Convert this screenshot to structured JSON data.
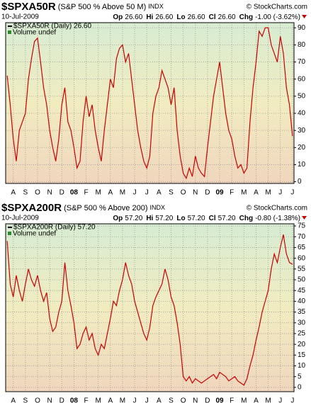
{
  "chart_data": [
    {
      "type": "line",
      "symbol": "$SPXA50R",
      "name": "(S&P 500 % Above 50 M)",
      "exchange": "INDX",
      "credit": "© StockCharts.com",
      "date": "10-Jul-2009",
      "quote": [
        {
          "label": "Op",
          "value": "26.60"
        },
        {
          "label": "Hi",
          "value": "26.60"
        },
        {
          "label": "Lo",
          "value": "26.60"
        },
        {
          "label": "Cl",
          "value": "26.60"
        },
        {
          "label": "Chg",
          "value": "-1.00 (-3.62%)"
        }
      ],
      "legend": [
        "$SPXA50R (Daily) 26.60",
        "Volume undef"
      ],
      "categories": [
        null,
        null,
        "A",
        null,
        null,
        null,
        "S",
        null,
        null,
        null,
        "O",
        null,
        null,
        null,
        "N",
        null,
        null,
        null,
        "D",
        null,
        null,
        null,
        "08",
        null,
        null,
        null,
        "F",
        null,
        null,
        null,
        "M",
        null,
        null,
        null,
        "A",
        null,
        null,
        null,
        "M",
        null,
        null,
        null,
        "J",
        null,
        null,
        null,
        "J",
        null,
        null,
        null,
        "A",
        null,
        null,
        null,
        "S",
        null,
        null,
        null,
        "O",
        null,
        null,
        null,
        "N",
        null,
        null,
        null,
        "D",
        null,
        null,
        null,
        "09",
        null,
        null,
        null,
        "F",
        null,
        null,
        null,
        "M",
        null,
        null,
        null,
        "A",
        null,
        null,
        null,
        "M",
        null,
        null,
        null,
        "J",
        null,
        null,
        null,
        "J"
      ],
      "series": [
        {
          "name": "$SPXA50R",
          "color": "#cc0000",
          "values": [
            62,
            45,
            25,
            12,
            30,
            35,
            40,
            60,
            72,
            82,
            84,
            70,
            55,
            45,
            30,
            20,
            12,
            25,
            45,
            55,
            35,
            30,
            20,
            8,
            12,
            35,
            50,
            38,
            45,
            30,
            20,
            12,
            30,
            45,
            60,
            55,
            72,
            78,
            80,
            70,
            75,
            60,
            45,
            30,
            20,
            12,
            8,
            15,
            40,
            50,
            55,
            65,
            60,
            55,
            45,
            55,
            30,
            15,
            5,
            2,
            8,
            3,
            15,
            8,
            5,
            3,
            20,
            35,
            50,
            60,
            70,
            55,
            40,
            30,
            25,
            15,
            8,
            10,
            5,
            8,
            35,
            55,
            70,
            88,
            85,
            90,
            90,
            80,
            75,
            70,
            85,
            75,
            55,
            45,
            26.6
          ]
        }
      ],
      "ylim": [
        -1,
        93
      ],
      "yticks": [
        0,
        10,
        20,
        30,
        40,
        50,
        60,
        70,
        80,
        90
      ],
      "grid": true
    },
    {
      "type": "line",
      "symbol": "$SPXA200R",
      "name": "(S&P 500 % Above 200)",
      "exchange": "INDX",
      "credit": "© StockCharts.com",
      "date": "10-Jul-2009",
      "quote": [
        {
          "label": "Op",
          "value": "57.20"
        },
        {
          "label": "Hi",
          "value": "57.20"
        },
        {
          "label": "Lo",
          "value": "57.20"
        },
        {
          "label": "Cl",
          "value": "57.20"
        },
        {
          "label": "Chg",
          "value": "-0.80 (-1.38%)"
        }
      ],
      "legend": [
        "$SPXA200R (Daily) 57.20",
        "Volume undef"
      ],
      "categories": [
        null,
        null,
        "A",
        null,
        null,
        null,
        "S",
        null,
        null,
        null,
        "O",
        null,
        null,
        null,
        "N",
        null,
        null,
        null,
        "D",
        null,
        null,
        null,
        "08",
        null,
        null,
        null,
        "F",
        null,
        null,
        null,
        "M",
        null,
        null,
        null,
        "A",
        null,
        null,
        null,
        "M",
        null,
        null,
        null,
        "J",
        null,
        null,
        null,
        "J",
        null,
        null,
        null,
        "A",
        null,
        null,
        null,
        "S",
        null,
        null,
        null,
        "O",
        null,
        null,
        null,
        "N",
        null,
        null,
        null,
        "D",
        null,
        null,
        null,
        "09",
        null,
        null,
        null,
        "F",
        null,
        null,
        null,
        "M",
        null,
        null,
        null,
        "A",
        null,
        null,
        null,
        "M",
        null,
        null,
        null,
        "J",
        null,
        null,
        null,
        "J"
      ],
      "series": [
        {
          "name": "$SPXA200R",
          "color": "#cc0000",
          "values": [
            68,
            48,
            42,
            52,
            45,
            40,
            48,
            55,
            50,
            47,
            52,
            45,
            40,
            44,
            32,
            26,
            28,
            35,
            40,
            58,
            45,
            38,
            30,
            18,
            20,
            25,
            28,
            22,
            25,
            18,
            15,
            20,
            18,
            25,
            32,
            40,
            38,
            45,
            50,
            58,
            52,
            48,
            40,
            35,
            30,
            25,
            22,
            28,
            38,
            42,
            45,
            48,
            55,
            50,
            42,
            38,
            30,
            20,
            5,
            3,
            5,
            2,
            4,
            3,
            2,
            3,
            4,
            5,
            6,
            4,
            7,
            6,
            5,
            3,
            4,
            5,
            3,
            2,
            1,
            4,
            10,
            15,
            22,
            28,
            35,
            40,
            45,
            55,
            62,
            58,
            65,
            71,
            62,
            58,
            57.2
          ]
        }
      ],
      "ylim": [
        -2,
        76
      ],
      "yticks": [
        0,
        5,
        10,
        15,
        20,
        25,
        30,
        35,
        40,
        45,
        50,
        55,
        60,
        65,
        70,
        75
      ],
      "grid": true
    }
  ]
}
